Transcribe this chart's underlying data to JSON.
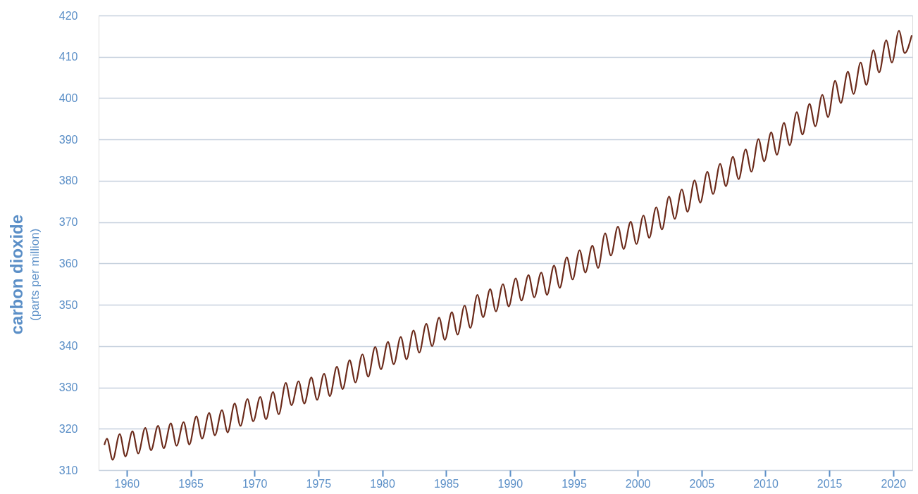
{
  "chart_data": {
    "type": "line",
    "ylabel": "carbon dioxide\n(parts per million)",
    "xlim": [
      1957.8,
      2021.5
    ],
    "xticks": [
      1960,
      1965,
      1970,
      1975,
      1980,
      1985,
      1990,
      1995,
      2000,
      2005,
      2010,
      2015,
      2020
    ],
    "ylim": [
      310,
      420
    ],
    "yticks": [
      310,
      320,
      330,
      340,
      350,
      360,
      370,
      380,
      390,
      400,
      410,
      420
    ],
    "grid": "y",
    "marker": "none",
    "line_style": "solid",
    "series": [
      {
        "color": "#6b2a1a",
        "x": [
          1958.25,
          1958.45,
          1958.9,
          1959.45,
          1959.9,
          1960.45,
          1960.9,
          1961.45,
          1961.9,
          1962.45,
          1962.9,
          1963.45,
          1963.9,
          1964.45,
          1964.9,
          1965.45,
          1965.9,
          1966.45,
          1966.9,
          1967.45,
          1967.9,
          1968.45,
          1968.9,
          1969.45,
          1969.9,
          1970.45,
          1970.9,
          1971.45,
          1971.9,
          1972.45,
          1972.9,
          1973.45,
          1973.9,
          1974.45,
          1974.9,
          1975.45,
          1975.9,
          1976.45,
          1976.9,
          1977.45,
          1977.9,
          1978.45,
          1978.9,
          1979.45,
          1979.9,
          1980.45,
          1980.9,
          1981.45,
          1981.9,
          1982.45,
          1982.9,
          1983.45,
          1983.9,
          1984.45,
          1984.9,
          1985.45,
          1985.9,
          1986.45,
          1986.9,
          1987.45,
          1987.9,
          1988.45,
          1988.9,
          1989.45,
          1989.9,
          1990.45,
          1990.9,
          1991.45,
          1991.9,
          1992.45,
          1992.9,
          1993.45,
          1993.9,
          1994.45,
          1994.9,
          1995.45,
          1995.9,
          1996.45,
          1996.9,
          1997.45,
          1997.9,
          1998.45,
          1998.9,
          1999.45,
          1999.9,
          2000.45,
          2000.9,
          2001.45,
          2001.9,
          2002.45,
          2002.9,
          2003.45,
          2003.9,
          2004.45,
          2004.9,
          2005.45,
          2005.9,
          2006.45,
          2006.9,
          2007.45,
          2007.9,
          2008.45,
          2008.9,
          2009.45,
          2009.9,
          2010.45,
          2010.9,
          2011.45,
          2011.9,
          2012.45,
          2012.9,
          2013.45,
          2013.9,
          2014.45,
          2014.9,
          2015.45,
          2015.9,
          2016.45,
          2016.9,
          2017.45,
          2017.9,
          2018.45,
          2018.9,
          2019.45,
          2019.9,
          2020.45,
          2020.9,
          2021.45
        ],
        "values": [
          316.1,
          317.6,
          312.5,
          318.7,
          313.3,
          319.4,
          314.0,
          320.2,
          314.8,
          320.7,
          315.3,
          321.3,
          315.9,
          321.6,
          316.2,
          323.0,
          317.6,
          323.8,
          318.4,
          324.5,
          319.1,
          326.1,
          320.7,
          327.2,
          321.8,
          327.7,
          322.3,
          328.9,
          323.5,
          331.1,
          325.7,
          331.5,
          326.1,
          332.4,
          327.0,
          333.3,
          327.9,
          335.0,
          329.6,
          336.6,
          331.2,
          338.0,
          332.6,
          339.8,
          334.4,
          341.0,
          335.6,
          342.2,
          336.8,
          343.8,
          338.4,
          345.4,
          340.0,
          346.9,
          341.5,
          348.2,
          342.8,
          349.8,
          344.4,
          352.4,
          347.0,
          353.8,
          348.4,
          355.0,
          349.6,
          356.4,
          351.0,
          357.2,
          351.8,
          357.8,
          352.4,
          359.5,
          354.1,
          361.5,
          356.1,
          363.2,
          357.8,
          364.3,
          358.9,
          367.3,
          361.9,
          368.9,
          363.5,
          370.1,
          364.7,
          371.6,
          366.2,
          373.6,
          368.2,
          376.2,
          370.8,
          377.9,
          372.5,
          380.1,
          374.7,
          382.2,
          376.8,
          384.1,
          378.7,
          385.8,
          380.4,
          387.6,
          382.2,
          390.1,
          384.7,
          391.7,
          386.3,
          394.0,
          388.6,
          396.6,
          391.2,
          398.6,
          393.2,
          400.8,
          395.4,
          404.2,
          398.8,
          406.4,
          401.0,
          408.6,
          403.2,
          411.6,
          406.2,
          414.0,
          408.6,
          416.3,
          410.9,
          415.2
        ]
      }
    ]
  }
}
